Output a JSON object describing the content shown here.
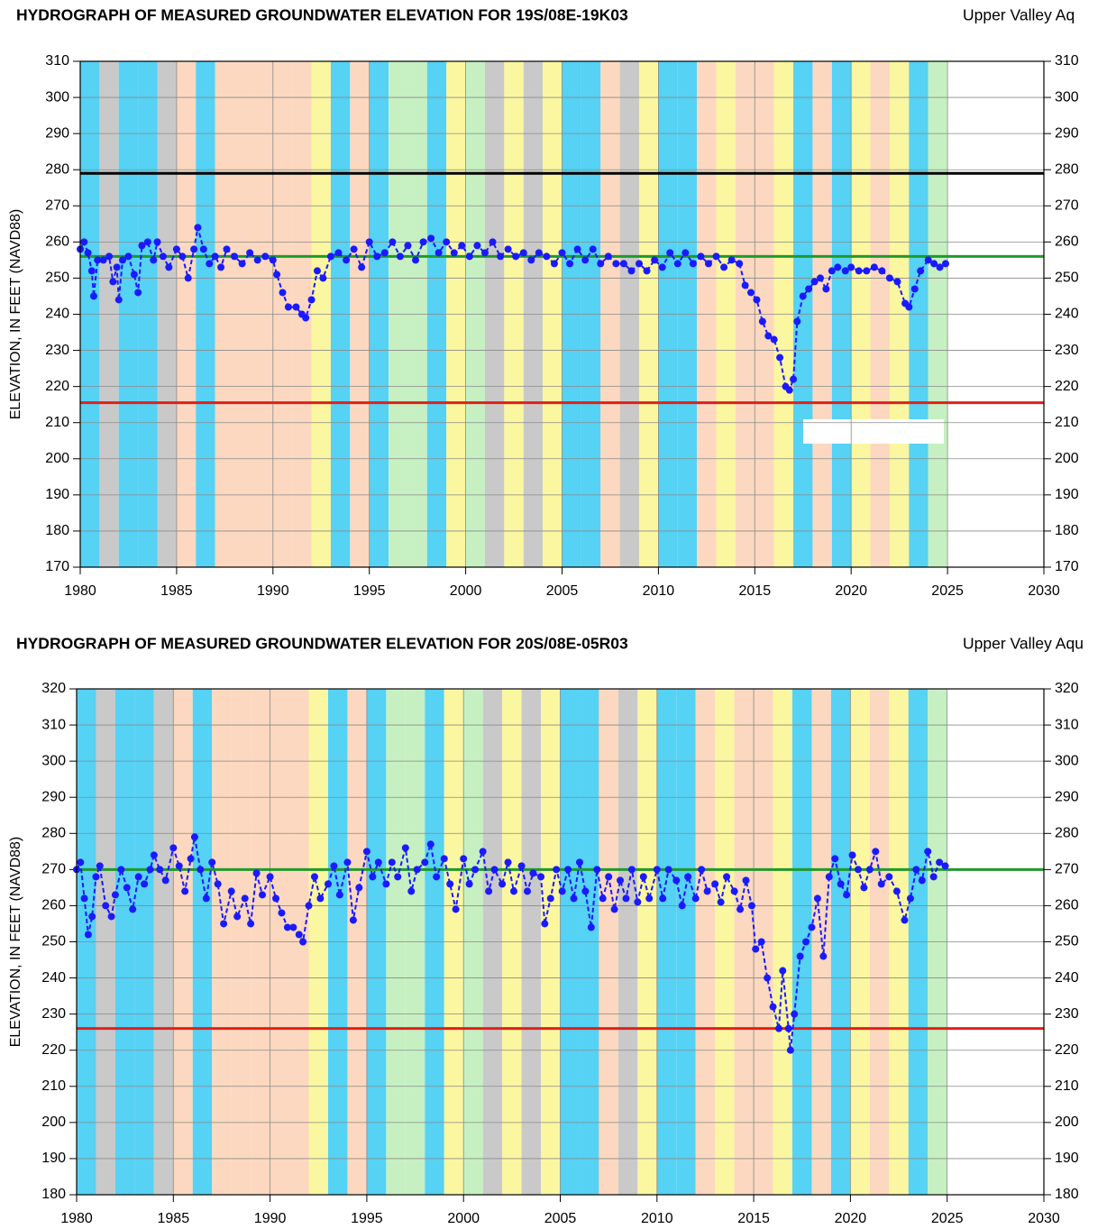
{
  "chart_data": [
    {
      "type": "scatter-line",
      "title": "HYDROGRAPH OF MEASURED GROUNDWATER ELEVATION FOR 19S/08E-19K03",
      "subtitle": "Upper Valley Aq",
      "y_label": "ELEVATION, IN FEET (NAVD88)",
      "xlim": [
        1980,
        2030
      ],
      "xticks": [
        1980,
        1985,
        1990,
        1995,
        2000,
        2005,
        2010,
        2015,
        2020,
        2025,
        2030
      ],
      "ylim": [
        170,
        310
      ],
      "yticks": [
        170,
        180,
        190,
        200,
        210,
        220,
        230,
        240,
        250,
        260,
        270,
        280,
        290,
        300,
        310
      ],
      "grid": true,
      "band_years": [
        1980,
        1981,
        1982,
        1983,
        1984,
        1985,
        1986,
        1987,
        1988,
        1989,
        1990,
        1991,
        1992,
        1993,
        1994,
        1995,
        1996,
        1997,
        1998,
        1999,
        2000,
        2001,
        2002,
        2003,
        2004,
        2005,
        2006,
        2007,
        2008,
        2009,
        2010,
        2011,
        2012,
        2013,
        2014,
        2015,
        2016,
        2017,
        2018,
        2019,
        2020,
        2021,
        2022,
        2023,
        2024
      ],
      "band_colors": [
        "#55d2f4",
        "#c9c9c9",
        "#55d2f4",
        "#55d2f4",
        "#c9c9c9",
        "#fbd8bf",
        "#55d2f4",
        "#fbd8bf",
        "#fbd8bf",
        "#fbd8bf",
        "#fbd8bf",
        "#fbd8bf",
        "#fbf6a0",
        "#55d2f4",
        "#fbd8bf",
        "#55d2f4",
        "#c6f0c2",
        "#c6f0c2",
        "#55d2f4",
        "#fbf6a0",
        "#c6f0c2",
        "#c9c9c9",
        "#fbf6a0",
        "#c9c9c9",
        "#fbf6a0",
        "#55d2f4",
        "#55d2f4",
        "#fbd8bf",
        "#c9c9c9",
        "#fbf6a0",
        "#55d2f4",
        "#55d2f4",
        "#fbd8bf",
        "#fbf6a0",
        "#fbd8bf",
        "#fbd8bf",
        "#fbf6a0",
        "#55d2f4",
        "#fbd8bf",
        "#55d2f4",
        "#fbf6a0",
        "#fbd8bf",
        "#fbf6a0",
        "#55d2f4",
        "#c6f0c2"
      ],
      "reference_lines": [
        {
          "value": 279,
          "color": "#000000"
        },
        {
          "value": 256,
          "color": "#1e9a2a"
        },
        {
          "value": 215.5,
          "color": "#e0201a"
        }
      ],
      "series": [
        {
          "color": "#1a1aff",
          "x": [
            1980.0,
            1980.2,
            1980.4,
            1980.6,
            1980.7,
            1980.9,
            1981.2,
            1981.5,
            1981.7,
            1981.9,
            1982.0,
            1982.2,
            1982.5,
            1982.8,
            1983.0,
            1983.2,
            1983.5,
            1983.8,
            1984.0,
            1984.3,
            1984.6,
            1985.0,
            1985.3,
            1985.6,
            1985.9,
            1986.1,
            1986.4,
            1986.7,
            1987.0,
            1987.3,
            1987.6,
            1988.0,
            1988.4,
            1988.8,
            1989.2,
            1989.6,
            1990.0,
            1990.2,
            1990.5,
            1990.8,
            1991.2,
            1991.5,
            1991.7,
            1992.0,
            1992.3,
            1992.6,
            1993.0,
            1993.4,
            1993.8,
            1994.2,
            1994.6,
            1995.0,
            1995.4,
            1995.8,
            1996.2,
            1996.6,
            1997.0,
            1997.4,
            1997.8,
            1998.2,
            1998.6,
            1999.0,
            1999.4,
            1999.8,
            2000.2,
            2000.6,
            2001.0,
            2001.4,
            2001.8,
            2002.2,
            2002.6,
            2003.0,
            2003.4,
            2003.8,
            2004.2,
            2004.6,
            2005.0,
            2005.4,
            2005.8,
            2006.2,
            2006.6,
            2007.0,
            2007.4,
            2007.8,
            2008.2,
            2008.6,
            2009.0,
            2009.4,
            2009.8,
            2010.2,
            2010.6,
            2011.0,
            2011.4,
            2011.8,
            2012.2,
            2012.6,
            2013.0,
            2013.4,
            2013.8,
            2014.2,
            2014.5,
            2014.8,
            2015.1,
            2015.4,
            2015.7,
            2016.0,
            2016.3,
            2016.6,
            2016.8,
            2017.0,
            2017.2,
            2017.5,
            2017.8,
            2018.1,
            2018.4,
            2018.7,
            2019.0,
            2019.3,
            2019.7,
            2020.0,
            2020.4,
            2020.8,
            2021.2,
            2021.6,
            2022.0,
            2022.4,
            2022.8,
            2023.0,
            2023.3,
            2023.6,
            2024.0,
            2024.3,
            2024.6,
            2024.9
          ],
          "values": [
            258,
            260,
            257,
            252,
            245,
            255,
            255,
            256,
            249,
            253,
            244,
            255,
            256,
            251,
            246,
            259,
            260,
            255,
            260,
            256,
            253,
            258,
            256,
            250,
            258,
            264,
            258,
            254,
            256,
            253,
            258,
            256,
            254,
            257,
            255,
            256,
            255,
            251,
            246,
            242,
            242,
            240,
            239,
            244,
            252,
            250,
            256,
            257,
            255,
            258,
            253,
            260,
            256,
            257,
            260,
            256,
            259,
            255,
            260,
            261,
            257,
            260,
            257,
            259,
            256,
            259,
            257,
            260,
            256,
            258,
            256,
            257,
            255,
            257,
            256,
            254,
            257,
            254,
            258,
            255,
            258,
            254,
            256,
            254,
            254,
            252,
            254,
            252,
            255,
            253,
            257,
            254,
            257,
            254,
            256,
            254,
            256,
            253,
            255,
            254,
            248,
            246,
            244,
            238,
            234,
            233,
            228,
            220,
            219,
            222,
            238,
            245,
            247,
            249,
            250,
            247,
            252,
            253,
            252,
            253,
            252,
            252,
            253,
            252,
            250,
            249,
            243,
            242,
            247,
            252,
            255,
            254,
            253,
            254
          ]
        }
      ]
    },
    {
      "type": "scatter-line",
      "title": "HYDROGRAPH OF MEASURED GROUNDWATER ELEVATION FOR 20S/08E-05R03",
      "subtitle": "Upper Valley Aqu",
      "y_label": "ELEVATION, IN FEET (NAVD88)",
      "xlim": [
        1980,
        2030
      ],
      "xticks": [
        1980,
        1985,
        1990,
        1995,
        2000,
        2005,
        2010,
        2015,
        2020,
        2025,
        2030
      ],
      "ylim": [
        180,
        320
      ],
      "yticks": [
        180,
        190,
        200,
        210,
        220,
        230,
        240,
        250,
        260,
        270,
        280,
        290,
        300,
        310,
        320
      ],
      "grid": true,
      "band_years": [
        1980,
        1981,
        1982,
        1983,
        1984,
        1985,
        1986,
        1987,
        1988,
        1989,
        1990,
        1991,
        1992,
        1993,
        1994,
        1995,
        1996,
        1997,
        1998,
        1999,
        2000,
        2001,
        2002,
        2003,
        2004,
        2005,
        2006,
        2007,
        2008,
        2009,
        2010,
        2011,
        2012,
        2013,
        2014,
        2015,
        2016,
        2017,
        2018,
        2019,
        2020,
        2021,
        2022,
        2023,
        2024
      ],
      "band_colors": [
        "#55d2f4",
        "#c9c9c9",
        "#55d2f4",
        "#55d2f4",
        "#c9c9c9",
        "#fbd8bf",
        "#55d2f4",
        "#fbd8bf",
        "#fbd8bf",
        "#fbd8bf",
        "#fbd8bf",
        "#fbd8bf",
        "#fbf6a0",
        "#55d2f4",
        "#fbd8bf",
        "#55d2f4",
        "#c6f0c2",
        "#c6f0c2",
        "#55d2f4",
        "#fbf6a0",
        "#c6f0c2",
        "#c9c9c9",
        "#fbf6a0",
        "#c9c9c9",
        "#fbf6a0",
        "#55d2f4",
        "#55d2f4",
        "#fbd8bf",
        "#c9c9c9",
        "#fbf6a0",
        "#55d2f4",
        "#55d2f4",
        "#fbd8bf",
        "#fbf6a0",
        "#fbd8bf",
        "#fbd8bf",
        "#fbf6a0",
        "#55d2f4",
        "#fbd8bf",
        "#55d2f4",
        "#fbf6a0",
        "#fbd8bf",
        "#fbf6a0",
        "#55d2f4",
        "#c6f0c2"
      ],
      "reference_lines": [
        {
          "value": 270,
          "color": "#1e9a2a"
        },
        {
          "value": 226,
          "color": "#e0201a"
        }
      ],
      "series": [
        {
          "color": "#1a1aff",
          "x": [
            1980.0,
            1980.2,
            1980.4,
            1980.6,
            1980.8,
            1981.0,
            1981.2,
            1981.5,
            1981.8,
            1982.0,
            1982.3,
            1982.6,
            1982.9,
            1983.2,
            1983.5,
            1983.8,
            1984.0,
            1984.3,
            1984.6,
            1985.0,
            1985.3,
            1985.6,
            1985.9,
            1986.1,
            1986.4,
            1986.7,
            1987.0,
            1987.3,
            1987.6,
            1988.0,
            1988.3,
            1988.7,
            1989.0,
            1989.3,
            1989.6,
            1990.0,
            1990.3,
            1990.6,
            1990.9,
            1991.2,
            1991.5,
            1991.7,
            1992.0,
            1992.3,
            1992.6,
            1993.0,
            1993.3,
            1993.6,
            1994.0,
            1994.3,
            1994.6,
            1995.0,
            1995.3,
            1995.6,
            1996.0,
            1996.3,
            1996.6,
            1997.0,
            1997.3,
            1997.6,
            1998.0,
            1998.3,
            1998.6,
            1999.0,
            1999.3,
            1999.6,
            2000.0,
            2000.3,
            2000.6,
            2001.0,
            2001.3,
            2001.6,
            2002.0,
            2002.3,
            2002.6,
            2003.0,
            2003.3,
            2003.6,
            2004.0,
            2004.2,
            2004.5,
            2004.8,
            2005.1,
            2005.4,
            2005.7,
            2006.0,
            2006.3,
            2006.6,
            2006.9,
            2007.2,
            2007.5,
            2007.8,
            2008.1,
            2008.4,
            2008.7,
            2009.0,
            2009.3,
            2009.6,
            2010.0,
            2010.3,
            2010.6,
            2011.0,
            2011.3,
            2011.6,
            2012.0,
            2012.3,
            2012.6,
            2013.0,
            2013.3,
            2013.6,
            2014.0,
            2014.3,
            2014.6,
            2014.9,
            2015.1,
            2015.4,
            2015.7,
            2016.0,
            2016.3,
            2016.5,
            2016.8,
            2016.9,
            2017.1,
            2017.4,
            2017.7,
            2018.0,
            2018.3,
            2018.6,
            2018.9,
            2019.2,
            2019.5,
            2019.8,
            2020.1,
            2020.4,
            2020.7,
            2021.0,
            2021.3,
            2021.6,
            2022.0,
            2022.4,
            2022.8,
            2023.1,
            2023.4,
            2023.7,
            2024.0,
            2024.3,
            2024.6,
            2024.9
          ],
          "values": [
            270,
            272,
            262,
            252,
            257,
            268,
            271,
            260,
            257,
            263,
            270,
            265,
            259,
            268,
            266,
            270,
            274,
            270,
            267,
            276,
            271,
            264,
            273,
            279,
            270,
            262,
            272,
            266,
            255,
            264,
            257,
            262,
            255,
            269,
            263,
            268,
            262,
            258,
            254,
            254,
            252,
            250,
            260,
            268,
            262,
            266,
            271,
            263,
            272,
            256,
            265,
            275,
            268,
            272,
            266,
            272,
            268,
            276,
            264,
            270,
            272,
            277,
            268,
            273,
            266,
            259,
            273,
            266,
            270,
            275,
            264,
            270,
            266,
            272,
            264,
            271,
            264,
            269,
            268,
            255,
            262,
            270,
            264,
            270,
            262,
            272,
            264,
            254,
            270,
            262,
            268,
            259,
            267,
            262,
            270,
            261,
            268,
            262,
            270,
            262,
            270,
            267,
            260,
            268,
            262,
            270,
            264,
            266,
            261,
            268,
            264,
            259,
            267,
            260,
            248,
            250,
            240,
            232,
            226,
            242,
            226,
            220,
            230,
            246,
            250,
            254,
            262,
            246,
            268,
            273,
            266,
            263,
            274,
            270,
            265,
            270,
            275,
            266,
            268,
            264,
            256,
            262,
            270,
            267,
            275,
            268,
            272,
            271
          ]
        }
      ]
    }
  ]
}
